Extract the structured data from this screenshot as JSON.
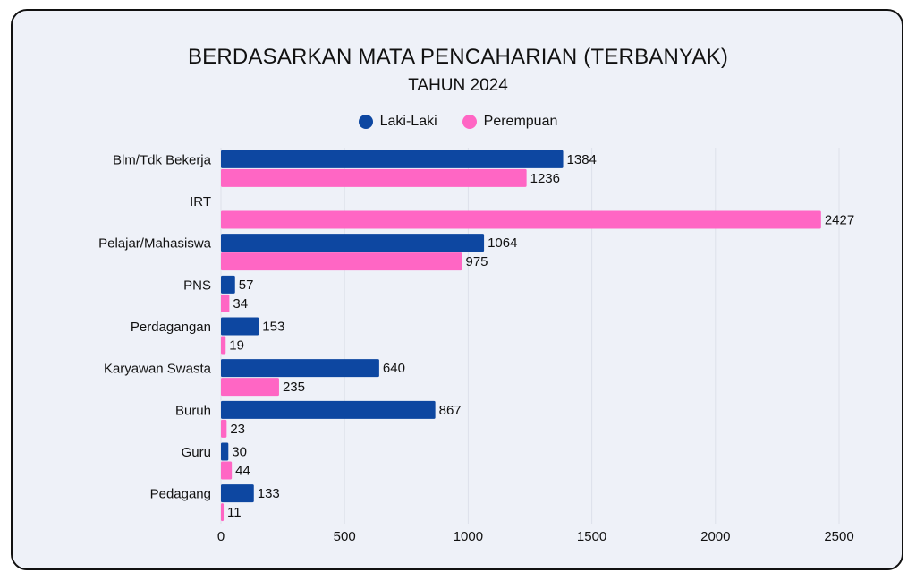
{
  "chart_data": {
    "type": "bar",
    "orientation": "horizontal",
    "title": "BERDASARKAN MATA PENCAHARIAN (TERBANYAK)",
    "subtitle": "TAHUN 2024",
    "categories": [
      "Blm/Tdk Bekerja",
      "IRT",
      "Pelajar/Mahasiswa",
      "PNS",
      "Perdagangan",
      "Karyawan Swasta",
      "Buruh",
      "Guru",
      "Pedagang"
    ],
    "series": [
      {
        "name": "Laki-Laki",
        "color": "#0d47a1",
        "values": [
          1384,
          null,
          1064,
          57,
          153,
          640,
          867,
          30,
          133
        ]
      },
      {
        "name": "Perempuan",
        "color": "#ff66c4",
        "values": [
          1236,
          2427,
          975,
          34,
          19,
          235,
          23,
          44,
          11
        ]
      }
    ],
    "xlim": [
      0,
      2500
    ],
    "xticks": [
      0,
      500,
      1000,
      1500,
      2000,
      2500
    ],
    "grid": true,
    "legend_position": "top"
  }
}
